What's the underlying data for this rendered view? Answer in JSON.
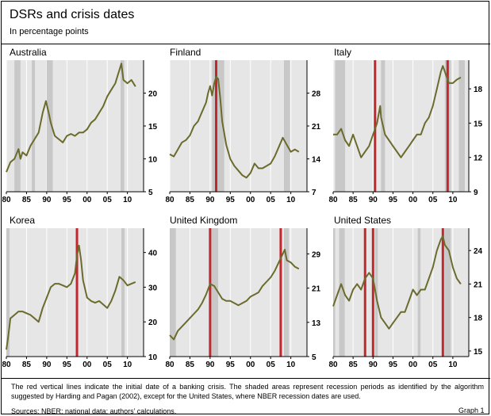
{
  "header": {
    "title": "DSRs and crisis dates",
    "subtitle": "In percentage points"
  },
  "footer": {
    "note": "The red vertical lines indicate the initial date of a banking crisis. The shaded areas represent recession periods as identified by the algorithm suggested by Harding and Pagan (2002), except for the United States, where NBER recession dates are used.",
    "sources": "Sources: NBER; national data; authors’ calculations.",
    "graph_label": "Graph 1"
  },
  "colors": {
    "line": "#6b6b2e",
    "crisis": "#c0282d",
    "recession": "#c8c8c8",
    "background": "#e6e6e6"
  },
  "chart_data": [
    {
      "type": "line",
      "title": "Australia",
      "xlim": [
        1980,
        2014
      ],
      "ylim": [
        5,
        25
      ],
      "xticks": [
        "80",
        "85",
        "90",
        "95",
        "00",
        "05",
        "10"
      ],
      "yticks": [
        5,
        10,
        15,
        20
      ],
      "recessions": [
        [
          1982.0,
          1983.5
        ],
        [
          1986.3,
          1987.1
        ],
        [
          1990.0,
          1991.5
        ],
        [
          2008.3,
          2009.2
        ]
      ],
      "crises": [],
      "series": [
        {
          "x": [
            1980,
            1981,
            1982,
            1983,
            1983.5,
            1984,
            1985,
            1986,
            1987,
            1988,
            1989,
            1989.8,
            1990.5,
            1991,
            1991.5,
            1992,
            1993,
            1994,
            1995,
            1996,
            1997,
            1998,
            1999,
            2000,
            2001,
            2002,
            2003,
            2004,
            2005,
            2006,
            2007,
            2007.5,
            2008,
            2008.5,
            2009,
            2010,
            2011,
            2012
          ],
          "y": [
            8.0,
            9.5,
            10.0,
            11.5,
            10.0,
            11.0,
            10.5,
            12.0,
            13.0,
            14.0,
            17.0,
            18.8,
            17.0,
            15.5,
            14.5,
            13.5,
            13.0,
            12.5,
            13.5,
            13.8,
            13.5,
            14.0,
            14.0,
            14.5,
            15.5,
            16.0,
            17.0,
            18.0,
            19.5,
            20.5,
            21.5,
            22.5,
            23.5,
            24.5,
            22.0,
            21.5,
            22.0,
            21.0
          ]
        }
      ]
    },
    {
      "type": "line",
      "title": "Finland",
      "xlim": [
        1980,
        2014
      ],
      "ylim": [
        7,
        35
      ],
      "xticks": [
        "80",
        "85",
        "90",
        "95",
        "00",
        "05",
        "10"
      ],
      "yticks": [
        7,
        14,
        21,
        28
      ],
      "recessions": [
        [
          1990.5,
          1993.5
        ],
        [
          2008.3,
          2009.8
        ]
      ],
      "crises": [
        1991.5
      ],
      "series": [
        {
          "x": [
            1980,
            1981,
            1982,
            1983,
            1984,
            1985,
            1986,
            1987,
            1988,
            1989,
            1989.5,
            1990,
            1990.5,
            1991,
            1991.5,
            1992,
            1992.5,
            1993,
            1994,
            1995,
            1996,
            1997,
            1998,
            1999,
            2000,
            2001,
            2002,
            2003,
            2004,
            2005,
            2006,
            2007,
            2008,
            2009,
            2010,
            2011,
            2012
          ],
          "y": [
            15.0,
            14.5,
            16.0,
            17.5,
            18.0,
            19.0,
            21.0,
            22.0,
            24.0,
            26.0,
            28.0,
            29.5,
            27.5,
            30.0,
            31.5,
            31.0,
            27.0,
            22.0,
            17.0,
            14.0,
            12.5,
            11.5,
            10.5,
            10.0,
            11.0,
            13.0,
            12.0,
            12.0,
            12.5,
            13.0,
            14.5,
            16.5,
            18.5,
            17.0,
            15.5,
            16.0,
            15.5
          ]
        }
      ]
    },
    {
      "type": "line",
      "title": "Italy",
      "xlim": [
        1980,
        2014
      ],
      "ylim": [
        9,
        20.5
      ],
      "xticks": [
        "80",
        "85",
        "90",
        "95",
        "00",
        "05",
        "10"
      ],
      "yticks": [
        9,
        12,
        15,
        18
      ],
      "recessions": [
        [
          1980.5,
          1983.0
        ],
        [
          1992.0,
          1993.0
        ],
        [
          2008.0,
          2009.5
        ],
        [
          2011.5,
          2013.0
        ]
      ],
      "crises": [
        1990.5,
        2008.7
      ],
      "series": [
        {
          "x": [
            1980,
            1981,
            1982,
            1983,
            1984,
            1985,
            1986,
            1987,
            1988,
            1989,
            1990,
            1991,
            1991.8,
            1992,
            1993,
            1994,
            1995,
            1996,
            1997,
            1998,
            1999,
            2000,
            2001,
            2002,
            2003,
            2004,
            2005,
            2006,
            2007,
            2007.5,
            2008,
            2008.5,
            2009,
            2010,
            2011,
            2012
          ],
          "y": [
            14.0,
            14.0,
            14.5,
            13.5,
            13.0,
            14.0,
            13.0,
            12.0,
            12.5,
            13.0,
            14.0,
            15.0,
            16.5,
            15.5,
            14.0,
            13.5,
            13.0,
            12.5,
            12.0,
            12.5,
            13.0,
            13.5,
            14.0,
            14.0,
            15.0,
            15.5,
            16.5,
            18.0,
            19.5,
            20.0,
            19.5,
            19.0,
            18.5,
            18.5,
            18.8,
            19.0
          ]
        }
      ]
    },
    {
      "type": "line",
      "title": "Korea",
      "xlim": [
        1980,
        2014
      ],
      "ylim": [
        10,
        47
      ],
      "xticks": [
        "80",
        "85",
        "90",
        "95",
        "00",
        "05",
        "10"
      ],
      "yticks": [
        10,
        20,
        30,
        40
      ],
      "recessions": [
        [
          1980.0,
          1980.8
        ],
        [
          2008.5,
          2009.3
        ]
      ],
      "crises": [
        1997.5
      ],
      "series": [
        {
          "x": [
            1980,
            1980.5,
            1981,
            1982,
            1983,
            1984,
            1985,
            1986,
            1987,
            1988,
            1989,
            1990,
            1991,
            1992,
            1993,
            1994,
            1995,
            1996,
            1997,
            1997.5,
            1998,
            1998.5,
            1999,
            2000,
            2001,
            2002,
            2003,
            2004,
            2005,
            2006,
            2007,
            2008,
            2009,
            2010,
            2011,
            2012
          ],
          "y": [
            12.0,
            16.0,
            21.0,
            22.0,
            23.0,
            23.0,
            22.5,
            22.0,
            21.0,
            20.0,
            24.0,
            27.0,
            30.0,
            31.0,
            31.0,
            30.5,
            30.0,
            31.0,
            34.0,
            39.0,
            42.0,
            38.0,
            32.0,
            27.0,
            26.0,
            25.5,
            26.0,
            25.0,
            24.0,
            26.0,
            29.0,
            33.0,
            32.0,
            30.5,
            31.0,
            31.5
          ]
        }
      ]
    },
    {
      "type": "line",
      "title": "United Kingdom",
      "xlim": [
        1980,
        2014
      ],
      "ylim": [
        5,
        35
      ],
      "xticks": [
        "80",
        "85",
        "90",
        "95",
        "00",
        "05",
        "10"
      ],
      "yticks": [
        5,
        13,
        21,
        29
      ],
      "recessions": [
        [
          1980.0,
          1981.5
        ],
        [
          1990.3,
          1992.0
        ],
        [
          2008.3,
          2009.5
        ]
      ],
      "crises": [
        1990.0,
        2007.5
      ],
      "series": [
        {
          "x": [
            1980,
            1981,
            1982,
            1983,
            1984,
            1985,
            1986,
            1987,
            1988,
            1989,
            1990,
            1991,
            1992,
            1993,
            1994,
            1995,
            1996,
            1997,
            1998,
            1999,
            2000,
            2001,
            2002,
            2003,
            2004,
            2005,
            2006,
            2007,
            2008,
            2008.5,
            2009,
            2010,
            2011,
            2012
          ],
          "y": [
            10.0,
            9.0,
            11.0,
            12.0,
            13.0,
            14.0,
            15.0,
            16.0,
            17.5,
            19.5,
            22.0,
            21.5,
            20.0,
            18.5,
            18.0,
            18.0,
            17.5,
            17.0,
            17.5,
            18.0,
            19.0,
            19.5,
            20.0,
            21.5,
            22.5,
            23.5,
            25.0,
            27.0,
            29.0,
            30.0,
            27.5,
            27.0,
            26.0,
            25.5
          ]
        }
      ]
    },
    {
      "type": "line",
      "title": "United States",
      "xlim": [
        1980,
        2014
      ],
      "ylim": [
        14.5,
        26
      ],
      "xticks": [
        "80",
        "85",
        "90",
        "95",
        "00",
        "05",
        "10"
      ],
      "yticks": [
        15,
        18,
        21,
        24
      ],
      "recessions": [
        [
          1980.0,
          1980.5
        ],
        [
          1981.5,
          1982.9
        ],
        [
          1990.5,
          1991.2
        ],
        [
          2001.2,
          2001.9
        ],
        [
          2007.9,
          2009.5
        ]
      ],
      "crises": [
        1988.0,
        1990.0,
        2007.5
      ],
      "series": [
        {
          "x": [
            1980,
            1981,
            1982,
            1983,
            1984,
            1985,
            1986,
            1987,
            1988,
            1989,
            1990,
            1991,
            1992,
            1993,
            1994,
            1995,
            1996,
            1997,
            1998,
            1999,
            2000,
            2001,
            2002,
            2003,
            2004,
            2005,
            2006,
            2007,
            2007.5,
            2008,
            2009,
            2010,
            2011,
            2012
          ],
          "y": [
            19.0,
            20.0,
            21.0,
            20.0,
            19.5,
            20.5,
            21.0,
            20.5,
            21.5,
            22.0,
            21.5,
            19.5,
            18.0,
            17.5,
            17.0,
            17.5,
            18.0,
            18.5,
            18.5,
            19.5,
            20.5,
            20.0,
            20.5,
            20.5,
            21.5,
            22.5,
            24.0,
            25.0,
            25.3,
            24.5,
            24.0,
            22.5,
            21.5,
            21.0
          ]
        }
      ]
    }
  ]
}
